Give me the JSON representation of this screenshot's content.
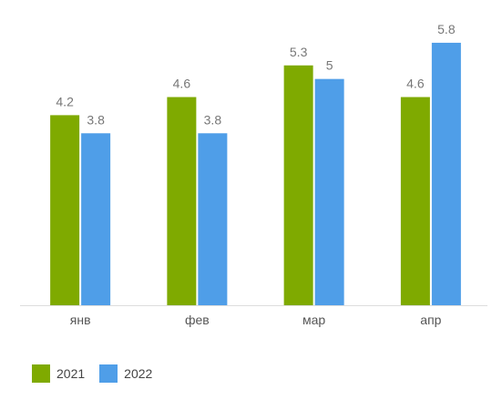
{
  "chart_data": {
    "type": "bar",
    "categories": [
      "янв",
      "фев",
      "мар",
      "апр"
    ],
    "series": [
      {
        "name": "2021",
        "values": [
          4.2,
          4.6,
          5.3,
          4.6
        ],
        "color": "#7faa00"
      },
      {
        "name": "2022",
        "values": [
          3.8,
          3.8,
          5,
          5.8
        ],
        "color": "#4f9ee8"
      }
    ],
    "title": "",
    "xlabel": "",
    "ylabel": "",
    "ylim": [
      0,
      6
    ],
    "grid": false,
    "legend": "bottom-left",
    "axis_color": "#dddddd"
  }
}
